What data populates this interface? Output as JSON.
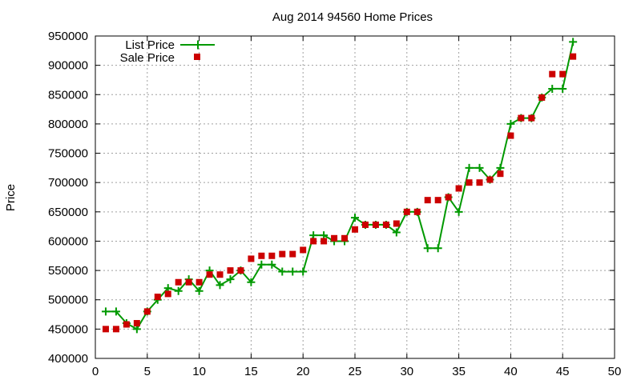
{
  "chart_data": {
    "type": "line",
    "title": "Aug 2014 94560 Home Prices",
    "xlabel": "",
    "ylabel": "Price",
    "xlim": [
      0,
      50
    ],
    "ylim": [
      400000,
      950000
    ],
    "x_ticks": [
      "0",
      "5",
      "10",
      "15",
      "20",
      "25",
      "30",
      "35",
      "40",
      "45",
      "50"
    ],
    "y_ticks": [
      "400000",
      "450000",
      "500000",
      "550000",
      "600000",
      "650000",
      "700000",
      "750000",
      "800000",
      "850000",
      "900000",
      "950000"
    ],
    "grid": true,
    "legend_position": "top-left",
    "series": [
      {
        "name": "List Price",
        "style": "line-with-plus-markers",
        "color": "#009900",
        "x": [
          1,
          2,
          3,
          4,
          5,
          6,
          7,
          8,
          9,
          10,
          11,
          12,
          13,
          14,
          15,
          16,
          17,
          18,
          19,
          20,
          21,
          22,
          23,
          24,
          25,
          26,
          27,
          28,
          29,
          30,
          31,
          32,
          33,
          34,
          35,
          36,
          37,
          38,
          39,
          40,
          41,
          42,
          43,
          44,
          45,
          46
        ],
        "y": [
          480000,
          480000,
          460000,
          450000,
          480000,
          500000,
          520000,
          515000,
          535000,
          515000,
          550000,
          525000,
          535000,
          550000,
          530000,
          560000,
          560000,
          548000,
          548000,
          548000,
          610000,
          610000,
          600000,
          600000,
          640000,
          628000,
          628000,
          628000,
          615000,
          650000,
          650000,
          588000,
          588000,
          675000,
          650000,
          725000,
          725000,
          705000,
          725000,
          800000,
          810000,
          810000,
          845000,
          860000,
          860000,
          940000
        ]
      },
      {
        "name": "Sale Price",
        "style": "square-markers",
        "color": "#cc0000",
        "x": [
          1,
          2,
          3,
          4,
          5,
          6,
          7,
          8,
          9,
          10,
          11,
          12,
          13,
          14,
          15,
          16,
          17,
          18,
          19,
          20,
          21,
          22,
          23,
          24,
          25,
          26,
          27,
          28,
          29,
          30,
          31,
          32,
          33,
          34,
          35,
          36,
          37,
          38,
          39,
          40,
          41,
          42,
          43,
          44,
          45,
          46
        ],
        "y": [
          450000,
          450000,
          458000,
          460000,
          480000,
          505000,
          510000,
          530000,
          530000,
          530000,
          543000,
          543000,
          550000,
          550000,
          570000,
          575000,
          575000,
          578000,
          578000,
          585000,
          600000,
          600000,
          605000,
          605000,
          620000,
          628000,
          628000,
          628000,
          630000,
          650000,
          650000,
          670000,
          670000,
          675000,
          690000,
          700000,
          700000,
          705000,
          715000,
          780000,
          810000,
          810000,
          845000,
          885000,
          885000,
          915000
        ]
      }
    ]
  }
}
